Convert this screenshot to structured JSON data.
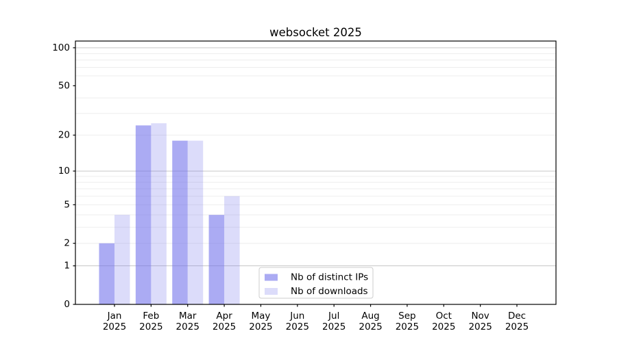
{
  "window": {
    "title": "websocket 2025"
  },
  "chart_data": {
    "type": "bar",
    "title": "websocket 2025",
    "categories": [
      "Jan",
      "Feb",
      "Mar",
      "Apr",
      "May",
      "Jun",
      "Jul",
      "Aug",
      "Sep",
      "Oct",
      "Nov",
      "Dec"
    ],
    "category_year": "2025",
    "series": [
      {
        "name": "Nb of distinct IPs",
        "color": "rgba(110,110,235,0.58)",
        "values": [
          2,
          24,
          18,
          4,
          0,
          0,
          0,
          0,
          0,
          0,
          0,
          0
        ]
      },
      {
        "name": "Nb of downloads",
        "color": "rgba(110,110,235,0.24)",
        "values": [
          4,
          25,
          18,
          6,
          0,
          0,
          0,
          0,
          0,
          0,
          0,
          0
        ]
      }
    ],
    "y_axis": {
      "scale": "log10(1+x)",
      "ticks": [
        0,
        1,
        2,
        5,
        10,
        20,
        50,
        100
      ],
      "major_gridlines": [
        1,
        10,
        100
      ],
      "minor_gridlines": [
        2,
        3,
        4,
        5,
        6,
        7,
        8,
        9,
        20,
        30,
        40,
        60,
        70,
        80,
        90
      ],
      "ylim": [
        0,
        113
      ]
    },
    "x_axis": {
      "label_line_2": "2025"
    },
    "legend": {
      "position": "bottom-center",
      "entries": [
        "Nb of distinct IPs",
        "Nb of downloads"
      ]
    },
    "colors": {
      "major_grid": "#c6c6c6",
      "minor_grid": "#ededed",
      "spine": "#000000",
      "text": "#000000",
      "background": "#ffffff",
      "legend_border": "#cccccc",
      "legend_background": "#ffffff"
    }
  }
}
